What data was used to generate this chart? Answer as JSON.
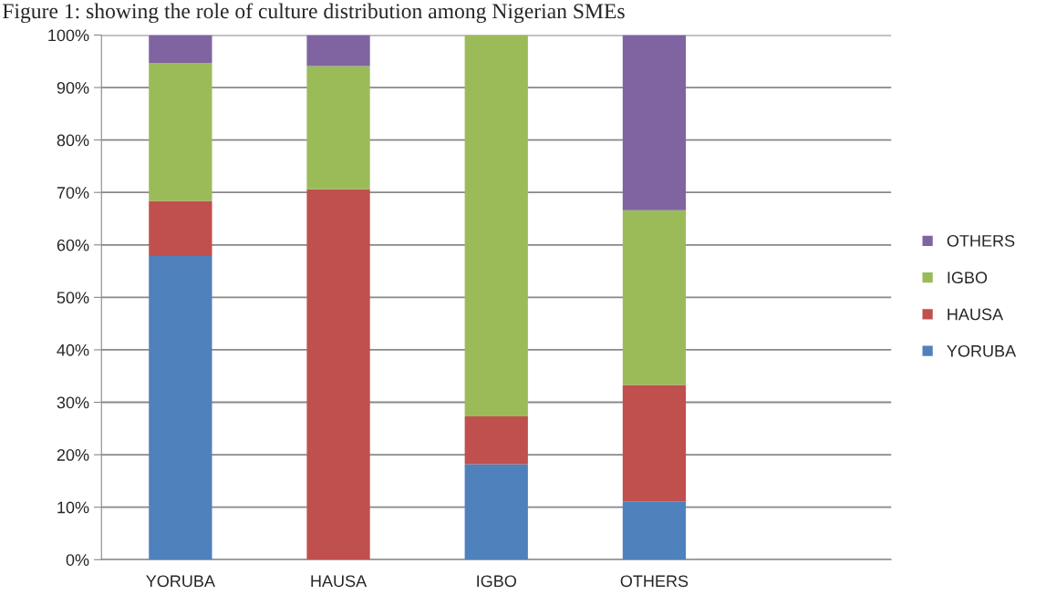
{
  "chart_data": {
    "type": "bar",
    "stacked": true,
    "title": "Figure 1: showing the role of culture distribution among Nigerian SMEs",
    "categories": [
      "YORUBA",
      "HAUSA",
      "IGBO",
      "OTHERS",
      null
    ],
    "series": [
      {
        "name": "YORUBA",
        "color": "#4f81bd",
        "values": [
          57.9,
          0,
          18.2,
          11.1,
          null
        ]
      },
      {
        "name": "HAUSA",
        "color": "#c0504d",
        "values": [
          10.5,
          70.6,
          9.1,
          22.2,
          null
        ]
      },
      {
        "name": "IGBO",
        "color": "#9bbb59",
        "values": [
          26.3,
          23.5,
          72.7,
          33.3,
          null
        ]
      },
      {
        "name": "OTHERS",
        "color": "#8064a2",
        "values": [
          5.3,
          5.9,
          0,
          33.4,
          null
        ]
      }
    ],
    "ylim": [
      0,
      100
    ],
    "yticks": [
      {
        "value": 0,
        "label": "0%"
      },
      {
        "value": 10,
        "label": "10%"
      },
      {
        "value": 20,
        "label": "20%"
      },
      {
        "value": 30,
        "label": "30%"
      },
      {
        "value": 40,
        "label": "40%"
      },
      {
        "value": 50,
        "label": "50%"
      },
      {
        "value": 60,
        "label": "60%"
      },
      {
        "value": 70,
        "label": "70%"
      },
      {
        "value": 80,
        "label": "80%"
      },
      {
        "value": 90,
        "label": "90%"
      },
      {
        "value": 100,
        "label": "100%"
      }
    ],
    "grid": "y",
    "legend": "right"
  }
}
